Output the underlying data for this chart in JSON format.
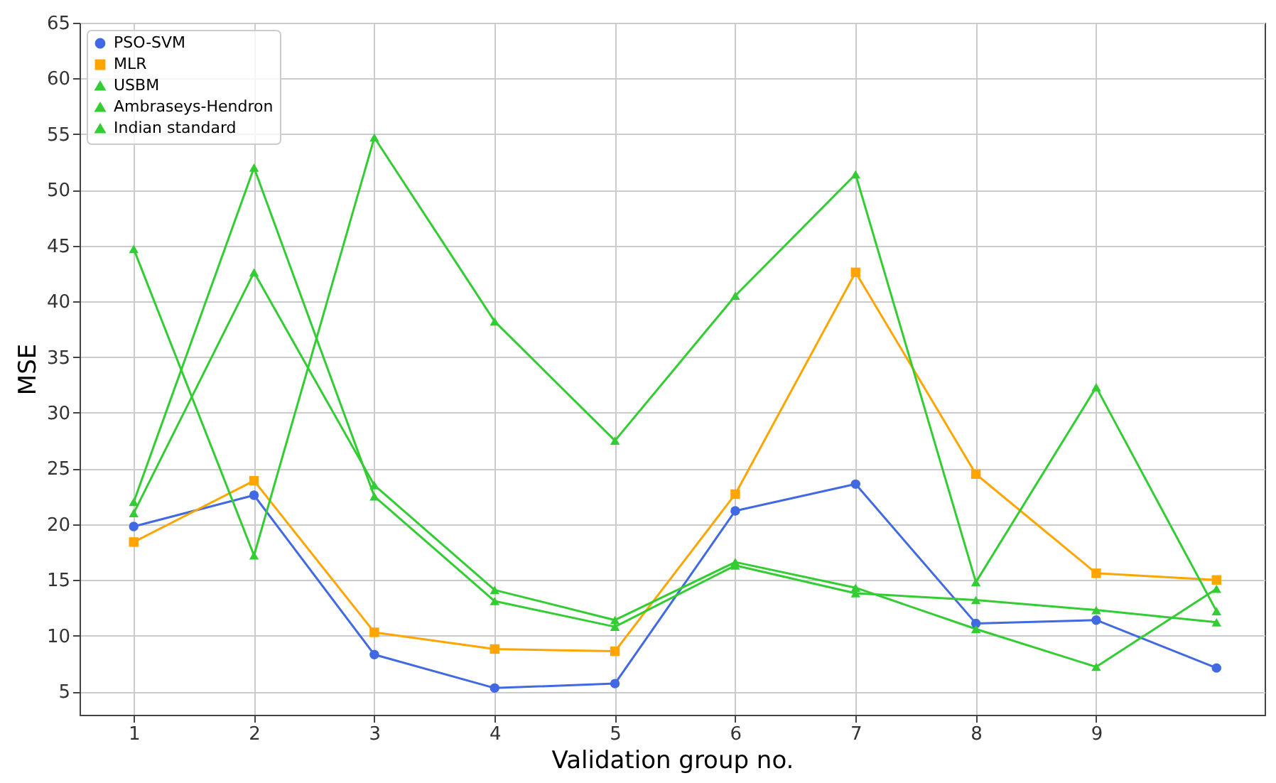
{
  "chart_data": {
    "type": "line",
    "xlabel": "Validation group no.",
    "ylabel": "MSE",
    "x": [
      1,
      2,
      3,
      4,
      5,
      6,
      7,
      8,
      9,
      10
    ],
    "xlim": [
      0.55,
      10.4
    ],
    "xticks": [
      1,
      2,
      3,
      4,
      5,
      6,
      7,
      8,
      9
    ],
    "ylim": [
      2.9,
      65
    ],
    "yticks": [
      5,
      10,
      15,
      20,
      25,
      30,
      35,
      40,
      45,
      50,
      55,
      60,
      65
    ],
    "grid": true,
    "legend": "top left",
    "line_style": "solid",
    "series": [
      {
        "name": "PSO-SVM",
        "color": "#4169e1",
        "marker": "circle",
        "values": [
          19.8,
          22.6,
          8.3,
          5.3,
          5.7,
          21.2,
          23.6,
          11.1,
          11.4,
          7.1
        ]
      },
      {
        "name": "MLR",
        "color": "#ffa500",
        "marker": "square",
        "values": [
          18.4,
          23.9,
          10.3,
          8.8,
          8.6,
          22.7,
          42.6,
          24.5,
          15.6,
          15.0
        ]
      },
      {
        "name": "USBM",
        "color": "#32cd32",
        "marker": "triangle",
        "values": [
          44.7,
          17.2,
          54.7,
          38.2,
          27.5,
          40.5,
          51.4,
          14.8,
          32.3,
          12.2
        ]
      },
      {
        "name": "Ambraseys-Hendron",
        "color": "#32cd32",
        "marker": "triangle",
        "values": [
          22.0,
          52.0,
          22.5,
          13.1,
          10.8,
          16.3,
          13.8,
          13.2,
          12.3,
          11.2
        ]
      },
      {
        "name": "Indian standard",
        "color": "#32cd32",
        "marker": "triangle",
        "values": [
          21.0,
          42.6,
          23.5,
          14.1,
          11.4,
          16.6,
          14.3,
          10.6,
          7.2,
          14.2
        ]
      }
    ]
  }
}
